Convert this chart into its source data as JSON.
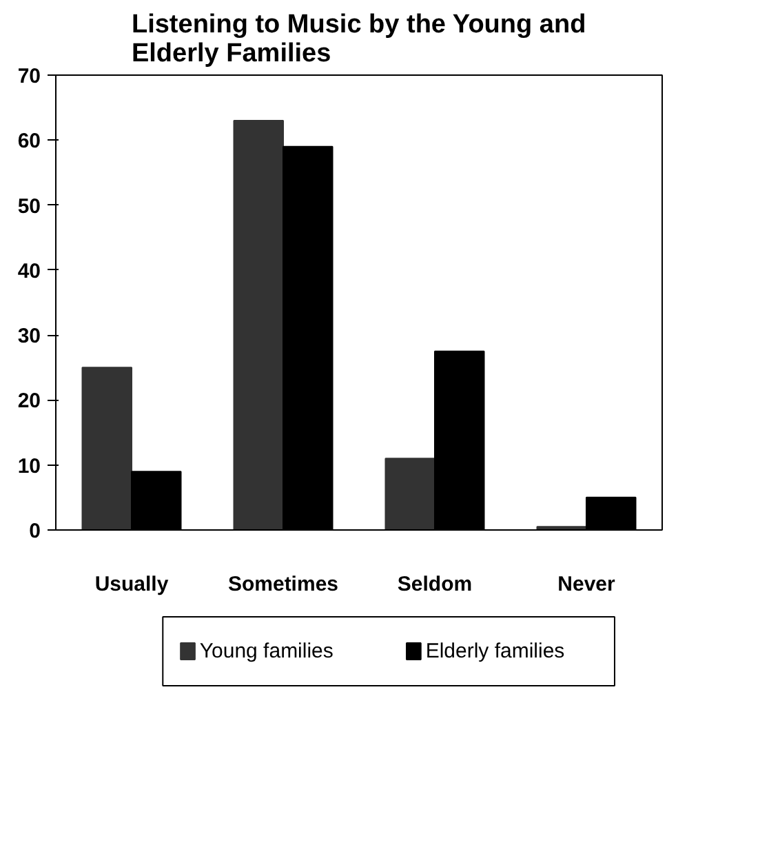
{
  "chart_data": {
    "type": "bar",
    "title": "Listening to Music by the Young and Elderly Families",
    "categories": [
      "Usually",
      "Sometimes",
      "Seldom",
      "Never"
    ],
    "series": [
      {
        "name": "Young families",
        "color": "#333333",
        "values": [
          25,
          63,
          11,
          0.5
        ]
      },
      {
        "name": "Elderly families",
        "color": "#000000",
        "values": [
          9,
          59,
          27.5,
          5
        ]
      }
    ],
    "ylim": [
      0,
      70
    ],
    "yticks": [
      0,
      10,
      20,
      30,
      40,
      50,
      60,
      70
    ],
    "grid": false,
    "legend": "bottom"
  }
}
